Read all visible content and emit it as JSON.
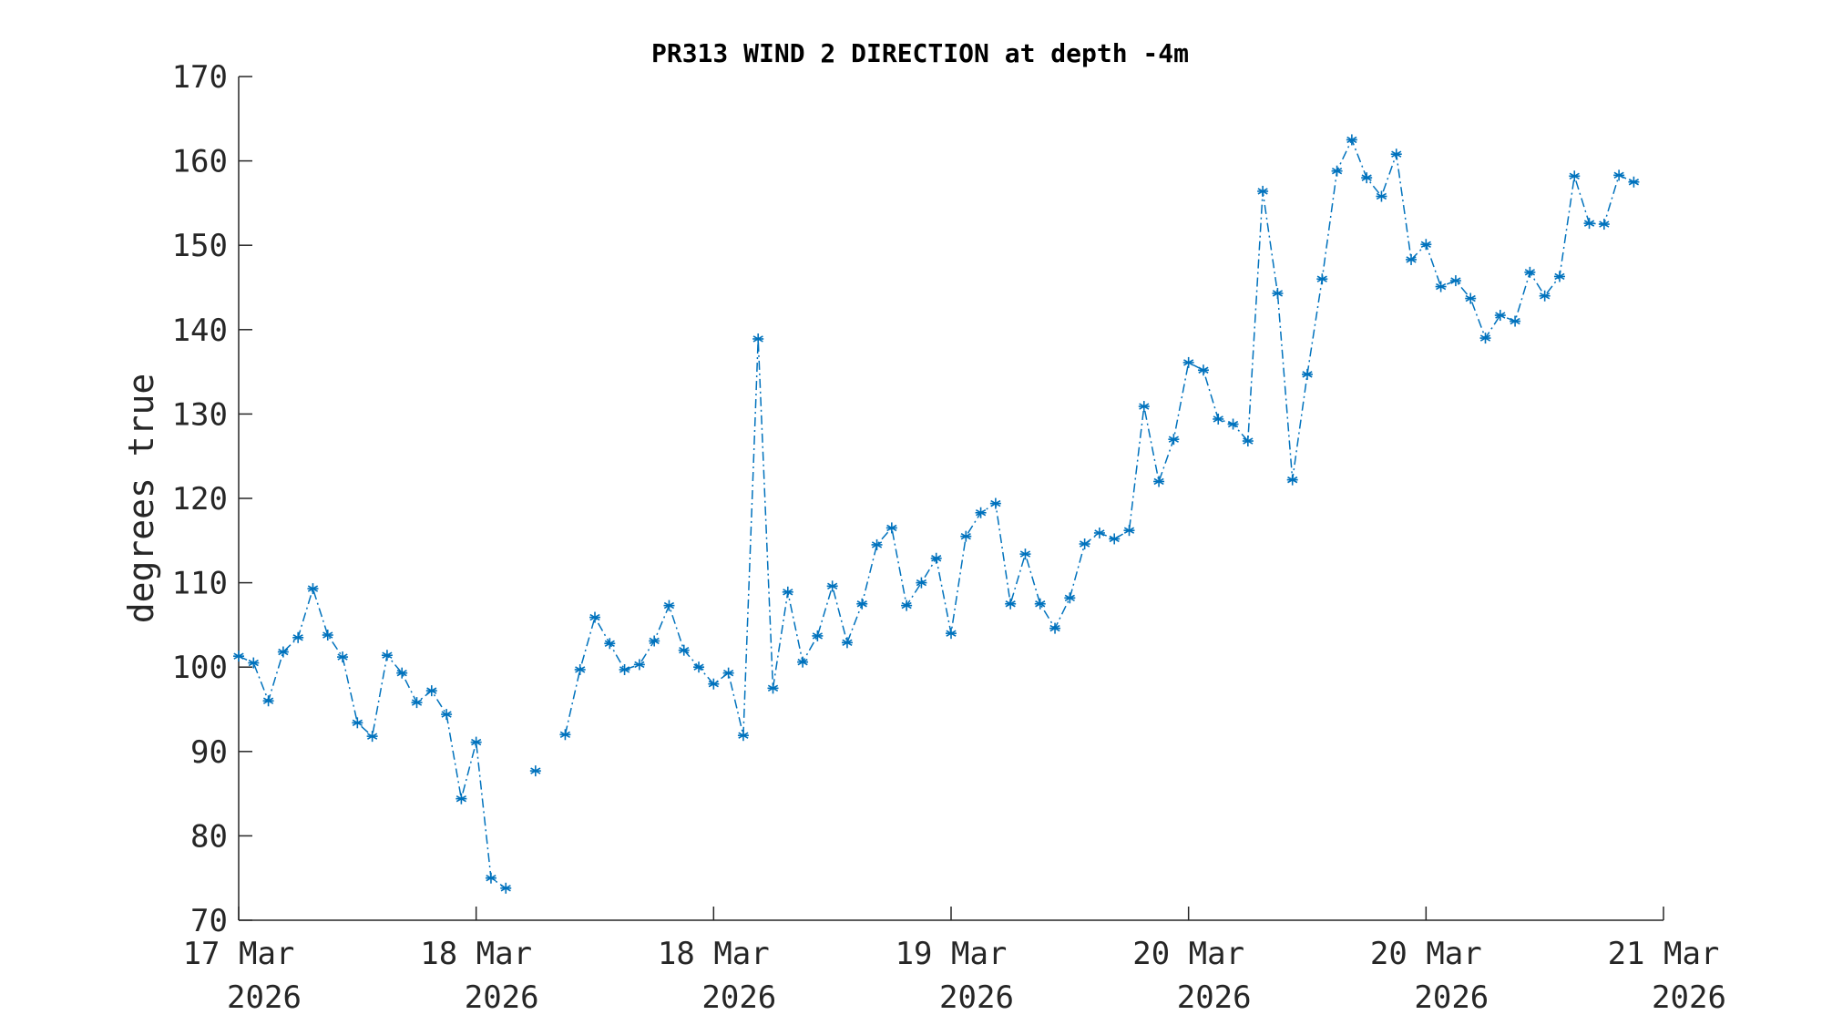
{
  "chart_data": {
    "type": "line",
    "title": "PR313 WIND 2 DIRECTION at depth -4m",
    "xlabel": "",
    "ylabel": "degrees true",
    "ylim": [
      70,
      170
    ],
    "yticks": [
      70,
      80,
      90,
      100,
      110,
      120,
      130,
      140,
      150,
      160,
      170
    ],
    "xlim": [
      0,
      96
    ],
    "xticks": [
      {
        "x": 0,
        "line1": "17 Mar",
        "line2": "2026"
      },
      {
        "x": 16,
        "line1": "18 Mar",
        "line2": "2026"
      },
      {
        "x": 32,
        "line1": "18 Mar",
        "line2": "2026"
      },
      {
        "x": 48,
        "line1": "19 Mar",
        "line2": "2026"
      },
      {
        "x": 64,
        "line1": "20 Mar",
        "line2": "2026"
      },
      {
        "x": 80,
        "line1": "20 Mar",
        "line2": "2026"
      },
      {
        "x": 96,
        "line1": "21 Mar",
        "line2": "2026"
      }
    ],
    "grid": false,
    "line_style": "dash-dot",
    "marker": "asterisk",
    "series_color": "#0072BD",
    "series": [
      {
        "name": "",
        "points": [
          [
            0,
            101.3
          ],
          [
            1,
            100.5
          ],
          [
            2,
            96.0
          ],
          [
            3,
            101.8
          ],
          [
            4,
            103.5
          ],
          [
            5,
            109.3
          ],
          [
            6,
            103.8
          ],
          [
            7,
            101.2
          ],
          [
            8,
            93.4
          ],
          [
            9,
            91.8
          ],
          [
            10,
            101.4
          ],
          [
            11,
            99.3
          ],
          [
            12,
            95.8
          ],
          [
            13,
            97.2
          ],
          [
            14,
            94.4
          ],
          [
            15,
            84.4
          ],
          [
            16,
            91.1
          ],
          [
            17,
            75.0
          ],
          [
            18,
            73.8
          ],
          [
            19,
            null
          ],
          [
            20,
            87.7
          ],
          [
            21,
            null
          ],
          [
            22,
            92.0
          ],
          [
            23,
            99.7
          ],
          [
            24,
            105.9
          ],
          [
            25,
            102.8
          ],
          [
            26,
            99.7
          ],
          [
            27,
            100.3
          ],
          [
            28,
            103.1
          ],
          [
            29,
            107.3
          ],
          [
            30,
            102.0
          ],
          [
            31,
            100.0
          ],
          [
            32,
            98.0
          ],
          [
            33,
            99.3
          ],
          [
            34,
            91.9
          ],
          [
            35,
            138.9
          ],
          [
            36,
            97.5
          ],
          [
            37,
            108.9
          ],
          [
            38,
            100.6
          ],
          [
            39,
            103.7
          ],
          [
            40,
            109.6
          ],
          [
            41,
            102.9
          ],
          [
            42,
            107.5
          ],
          [
            43,
            114.5
          ],
          [
            44,
            116.5
          ],
          [
            45,
            107.3
          ],
          [
            46,
            110.0
          ],
          [
            47,
            112.9
          ],
          [
            48,
            104.0
          ],
          [
            49,
            115.5
          ],
          [
            50,
            118.3
          ],
          [
            51,
            119.4
          ],
          [
            52,
            107.5
          ],
          [
            53,
            113.4
          ],
          [
            54,
            107.5
          ],
          [
            55,
            104.6
          ],
          [
            56,
            108.2
          ],
          [
            57,
            114.6
          ],
          [
            58,
            115.9
          ],
          [
            59,
            115.2
          ],
          [
            60,
            116.2
          ],
          [
            61,
            130.9
          ],
          [
            62,
            122.0
          ],
          [
            63,
            127.0
          ],
          [
            64,
            136.1
          ],
          [
            65,
            135.2
          ],
          [
            66,
            129.4
          ],
          [
            67,
            128.8
          ],
          [
            68,
            126.8
          ],
          [
            69,
            156.4
          ],
          [
            70,
            144.3
          ],
          [
            71,
            122.2
          ],
          [
            72,
            134.7
          ],
          [
            73,
            146.0
          ],
          [
            74,
            158.8
          ],
          [
            75,
            162.5
          ],
          [
            76,
            158.0
          ],
          [
            77,
            155.8
          ],
          [
            78,
            160.8
          ],
          [
            79,
            148.3
          ],
          [
            80,
            150.1
          ],
          [
            81,
            145.1
          ],
          [
            82,
            145.8
          ],
          [
            83,
            143.7
          ],
          [
            84,
            139.0
          ],
          [
            85,
            141.7
          ],
          [
            86,
            141.0
          ],
          [
            87,
            146.8
          ],
          [
            88,
            144.0
          ],
          [
            89,
            146.3
          ],
          [
            90,
            158.2
          ],
          [
            91,
            152.6
          ],
          [
            92,
            152.5
          ],
          [
            93,
            158.3
          ],
          [
            94,
            157.5
          ]
        ]
      }
    ]
  }
}
